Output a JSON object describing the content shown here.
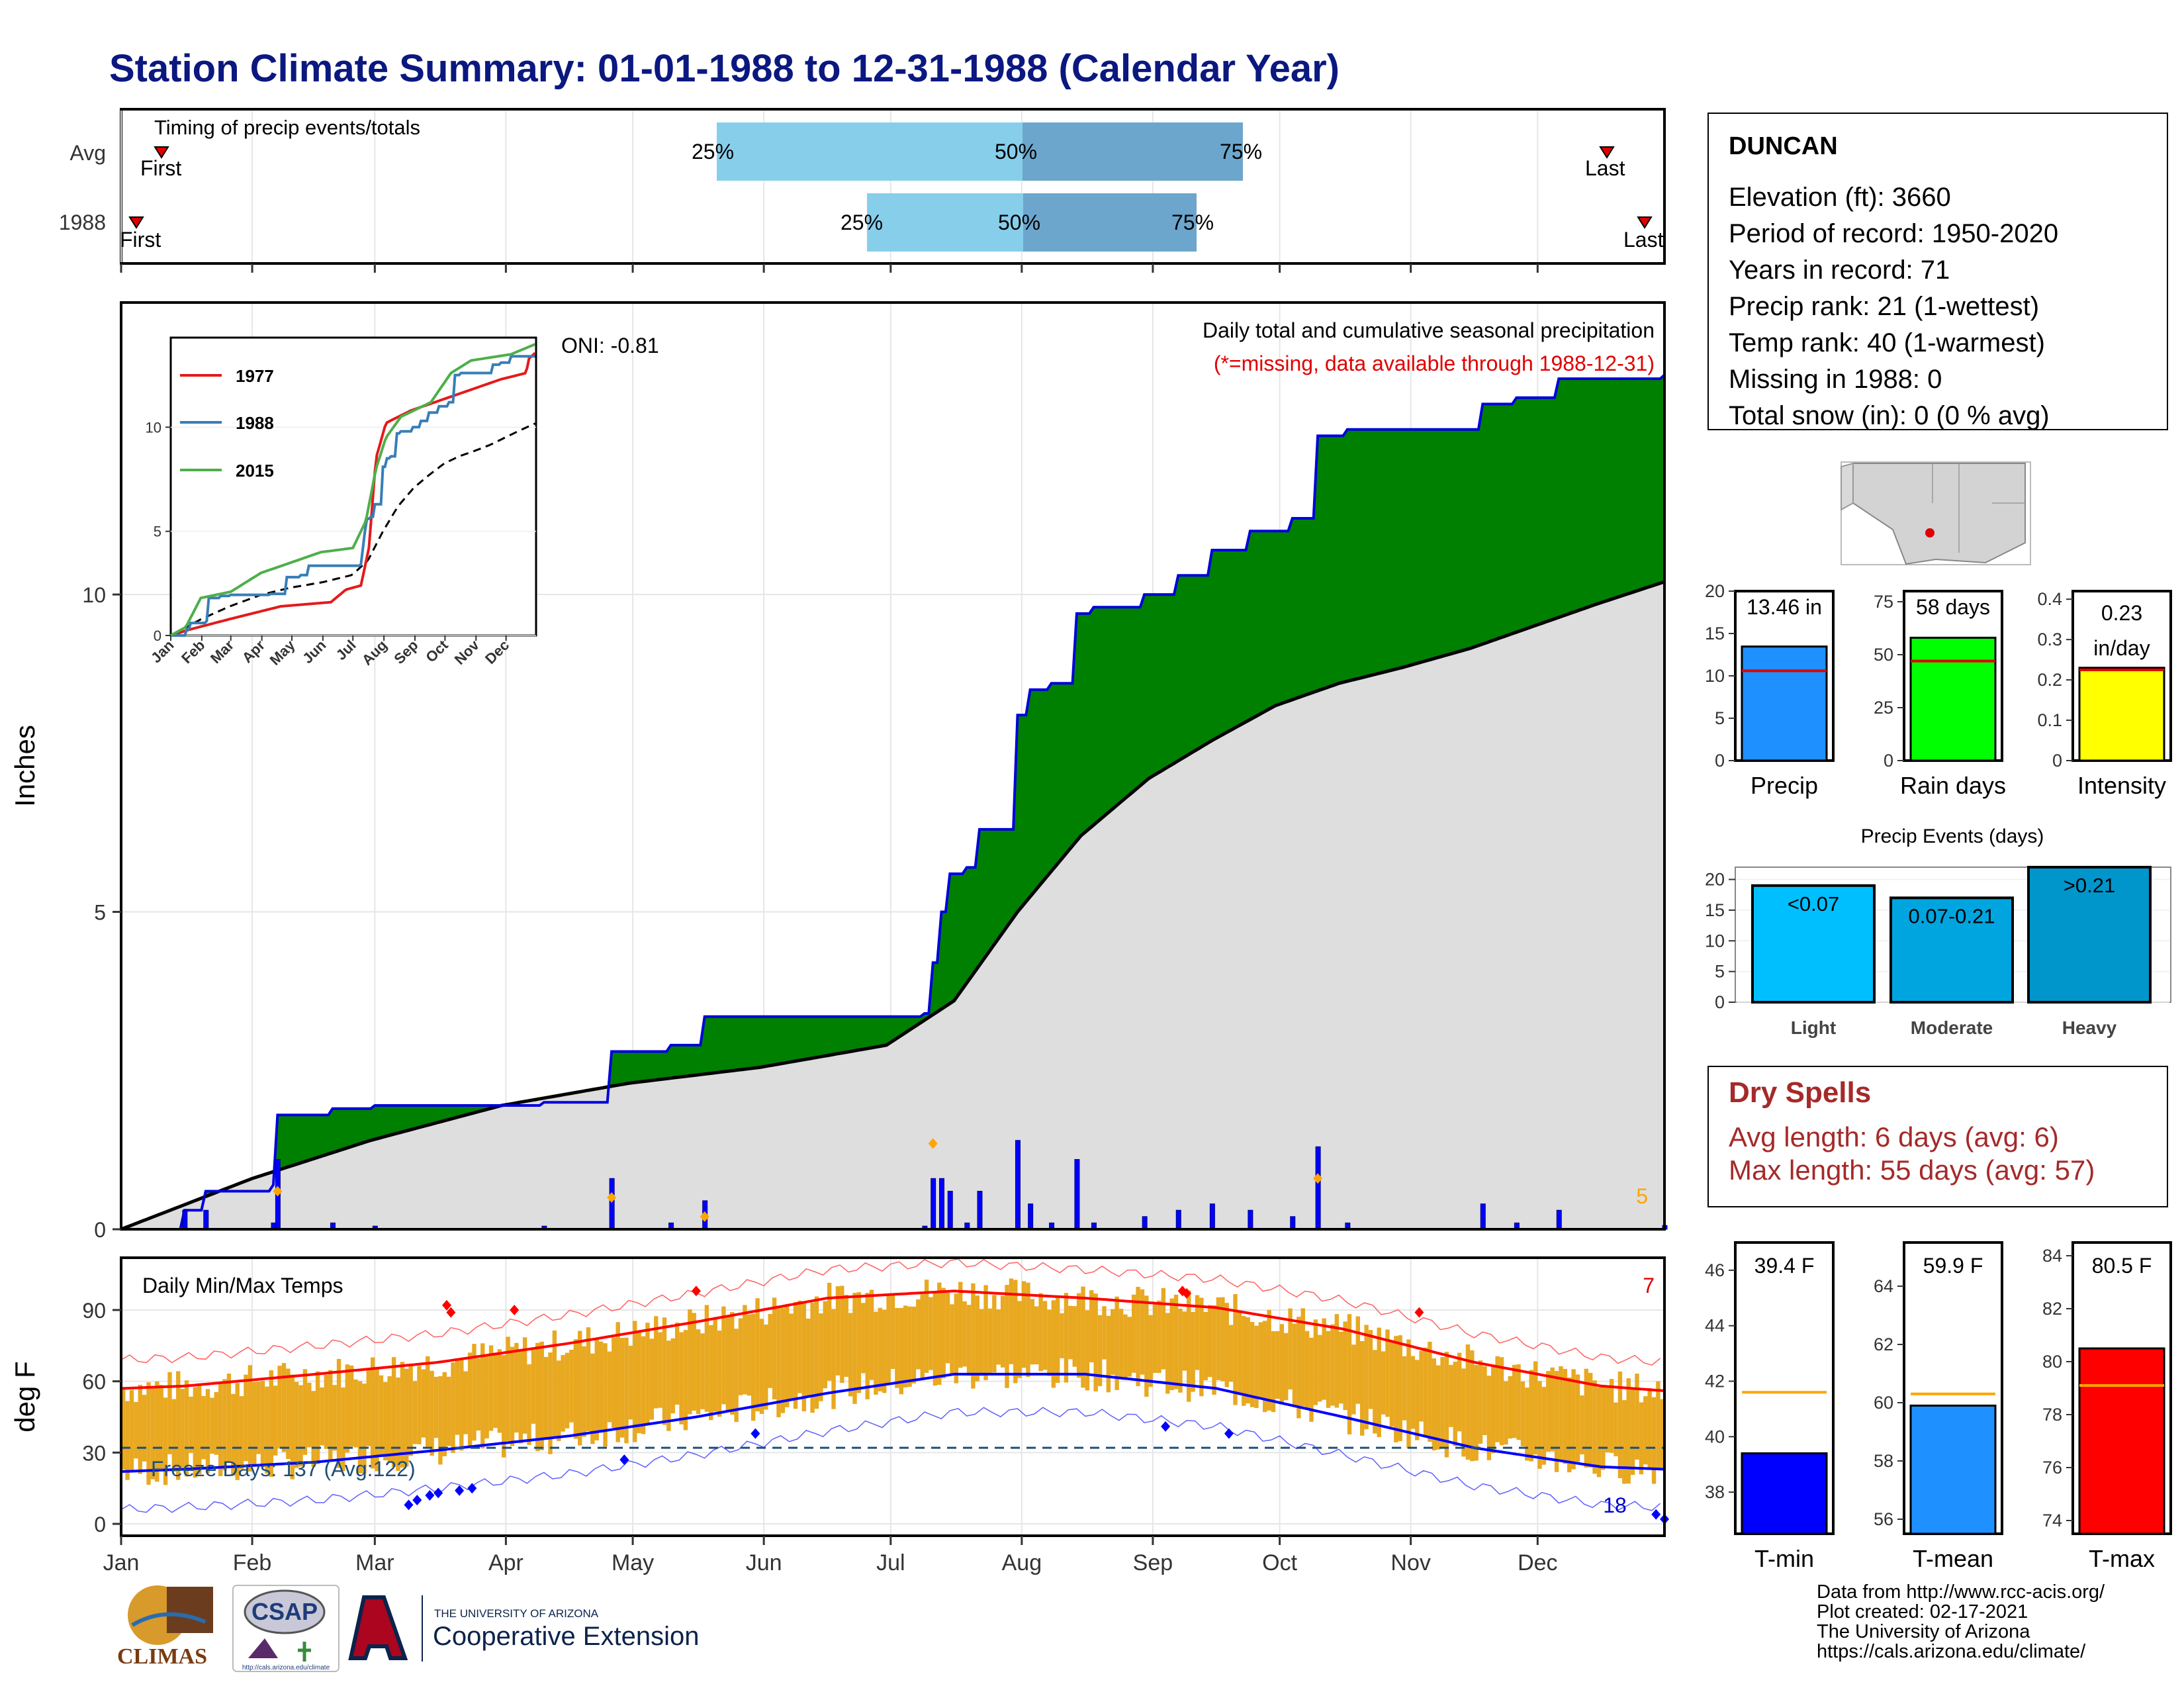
{
  "title": "Station Climate Summary: 01-01-1988 to 12-31-1988 (Calendar Year)",
  "months": [
    "Jan",
    "Feb",
    "Mar",
    "Apr",
    "May",
    "Jun",
    "Jul",
    "Aug",
    "Sep",
    "Oct",
    "Nov",
    "Dec"
  ],
  "timing": {
    "panel_label": "Timing of precip events/totals",
    "rows": [
      "Avg",
      "1988"
    ],
    "first_label": "First",
    "last_label": "Last",
    "p25": "25%",
    "p50": "50%",
    "p75": "75%"
  },
  "station": {
    "name": "DUNCAN",
    "lines": [
      "Elevation (ft): 3660",
      "Period of record: 1950-2020",
      "Years in record: 71",
      "Precip rank: 21 (1-wettest)",
      "Temp rank: 40 (1-warmest)",
      "Missing in 1988: 0",
      "Total snow (in): 0 (0 % avg)"
    ]
  },
  "precip_panel": {
    "ylabel": "Inches",
    "title": "Daily total and cumulative seasonal precipitation",
    "missing_note": "(*=missing, data available through 1988-12-31)",
    "oni": "ONI: -0.81",
    "corner_count": "5"
  },
  "inset": {
    "legend": [
      "1977",
      "1988",
      "2015"
    ]
  },
  "temp_panel": {
    "ylabel": "deg F",
    "title": "Daily Min/Max Temps",
    "freeze_label": "Freeze Days: 137 (Avg:122)",
    "count_high": "7",
    "count_low": "18"
  },
  "summary_bars": {
    "precip": {
      "label": "Precip",
      "value_text": "13.46 in"
    },
    "rain_days": {
      "label": "Rain days",
      "value_text": "58 days"
    },
    "intensity": {
      "label": "Intensity",
      "value_text_1": "0.23",
      "value_text_2": "in/day"
    }
  },
  "events": {
    "title": "Precip Events (days)",
    "bars": [
      {
        "label": "Light",
        "text": "<0.07"
      },
      {
        "label": "Moderate",
        "text": "0.07-0.21"
      },
      {
        "label": "Heavy",
        "text": ">0.21"
      }
    ]
  },
  "dry_spells": {
    "title": "Dry Spells",
    "avg": "Avg length: 6 days (avg: 6)",
    "max": "Max length: 55 days (avg: 57)"
  },
  "temp_bars": {
    "tmin": {
      "label": "T-min",
      "value_text": "39.4 F"
    },
    "tmean": {
      "label": "T-mean",
      "value_text": "59.9 F"
    },
    "tmax": {
      "label": "T-max",
      "value_text": "80.5 F"
    }
  },
  "logos": {
    "climas": "CLIMAS",
    "csap": "CSAP",
    "csap_url": "http://cals.arizona.edu/climate",
    "ua_small": "THE UNIVERSITY OF ARIZONA",
    "ua_big": "Cooperative Extension"
  },
  "credits": [
    "Data from http://www.rcc-acis.org/",
    "Plot created: 02-17-2021",
    "The University of Arizona",
    "https://cals.arizona.edu/climate/"
  ],
  "colors": {
    "title": "#0b1880",
    "above_normal": "#008000",
    "below_normal": "#8b4513",
    "normal_fill": "#dedede",
    "daily_bar": "#0000ff",
    "temp_band": "#e8a820",
    "tmax_line": "#ff0000",
    "tmin_line": "#0000ff",
    "precip_bar": "#1e90ff",
    "raindays_bar": "#00ff00",
    "intensity_bar": "#ffff00",
    "light": "#00bfff",
    "moderate": "#00a5e0",
    "heavy": "#0096cc",
    "dry": "#a52a2a"
  },
  "chart_data": [
    {
      "type": "line",
      "title": "Daily total and cumulative seasonal precipitation",
      "ylabel": "Inches",
      "ylim": [
        0,
        14.6
      ],
      "x": [
        "Jan",
        "Feb",
        "Mar",
        "Apr",
        "May",
        "Jun",
        "Jul",
        "Aug",
        "Sep",
        "Oct",
        "Nov",
        "Dec"
      ],
      "series": [
        {
          "name": "1988 cumulative",
          "points": [
            [
              0,
              0
            ],
            [
              15,
              0.3
            ],
            [
              20,
              0.6
            ],
            [
              36,
              0.7
            ],
            [
              37,
              1.8
            ],
            [
              50,
              1.9
            ],
            [
              60,
              1.95
            ],
            [
              100,
              2.0
            ],
            [
              115,
              2.0
            ],
            [
              116,
              2.8
            ],
            [
              130,
              2.9
            ],
            [
              138,
              3.35
            ],
            [
              185,
              3.35
            ],
            [
              190,
              3.4
            ],
            [
              192,
              4.2
            ],
            [
              194,
              5.0
            ],
            [
              196,
              5.6
            ],
            [
              200,
              5.7
            ],
            [
              203,
              6.3
            ],
            [
              207,
              6.3
            ],
            [
              212,
              8.1
            ],
            [
              215,
              8.5
            ],
            [
              220,
              8.6
            ],
            [
              226,
              9.7
            ],
            [
              230,
              9.8
            ],
            [
              242,
              10.0
            ],
            [
              250,
              10.3
            ],
            [
              258,
              10.7
            ],
            [
              267,
              11.0
            ],
            [
              277,
              11.2
            ],
            [
              283,
              12.5
            ],
            [
              290,
              12.6
            ],
            [
              315,
              12.6
            ],
            [
              322,
              13.0
            ],
            [
              330,
              13.1
            ],
            [
              340,
              13.4
            ],
            [
              365,
              13.46
            ]
          ]
        },
        {
          "name": "Average cumulative",
          "points": [
            [
              0,
              0
            ],
            [
              31,
              0.8
            ],
            [
              59,
              1.4
            ],
            [
              90,
              1.95
            ],
            [
              120,
              2.3
            ],
            [
              151,
              2.55
            ],
            [
              181,
              2.9
            ],
            [
              197,
              3.6
            ],
            [
              212,
              5.0
            ],
            [
              227,
              6.2
            ],
            [
              243,
              7.1
            ],
            [
              258,
              7.7
            ],
            [
              273,
              8.25
            ],
            [
              288,
              8.6
            ],
            [
              303,
              8.85
            ],
            [
              319,
              9.15
            ],
            [
              334,
              9.5
            ],
            [
              349,
              9.85
            ],
            [
              365,
              10.2
            ]
          ]
        }
      ]
    },
    {
      "type": "line",
      "title": "Daily Min/Max Temps",
      "ylabel": "deg F",
      "ylim": [
        -5,
        112
      ],
      "x": [
        "Jan",
        "Feb",
        "Mar",
        "Apr",
        "May",
        "Jun",
        "Jul",
        "Aug",
        "Sep",
        "Oct",
        "Nov",
        "Dec"
      ],
      "series": [
        {
          "name": "Normal max",
          "values": [
            58,
            63,
            68,
            76,
            85,
            95,
            98,
            95,
            91,
            82,
            68,
            58
          ]
        },
        {
          "name": "Normal min",
          "values": [
            23,
            26,
            31,
            37,
            45,
            55,
            63,
            63,
            57,
            45,
            32,
            24
          ]
        }
      ]
    },
    {
      "type": "bar",
      "categories": [
        "Precip"
      ],
      "values": [
        13.46
      ],
      "ylim": [
        0,
        20
      ]
    },
    {
      "type": "bar",
      "categories": [
        "Rain days"
      ],
      "values": [
        58
      ],
      "ylim": [
        0,
        80
      ]
    },
    {
      "type": "bar",
      "categories": [
        "Intensity"
      ],
      "values": [
        0.23
      ],
      "ylim": [
        0,
        0.42
      ]
    },
    {
      "type": "bar",
      "title": "Precip Events (days)",
      "categories": [
        "Light",
        "Moderate",
        "Heavy"
      ],
      "values": [
        19,
        17,
        22
      ],
      "ylim": [
        0,
        22
      ]
    },
    {
      "type": "bar",
      "categories": [
        "T-min"
      ],
      "values": [
        39.4
      ],
      "ylim": [
        36.5,
        47
      ]
    },
    {
      "type": "bar",
      "categories": [
        "T-mean"
      ],
      "values": [
        59.9
      ],
      "ylim": [
        55.5,
        65.5
      ]
    },
    {
      "type": "bar",
      "categories": [
        "T-max"
      ],
      "values": [
        80.5
      ],
      "ylim": [
        74,
        84
      ]
    }
  ]
}
